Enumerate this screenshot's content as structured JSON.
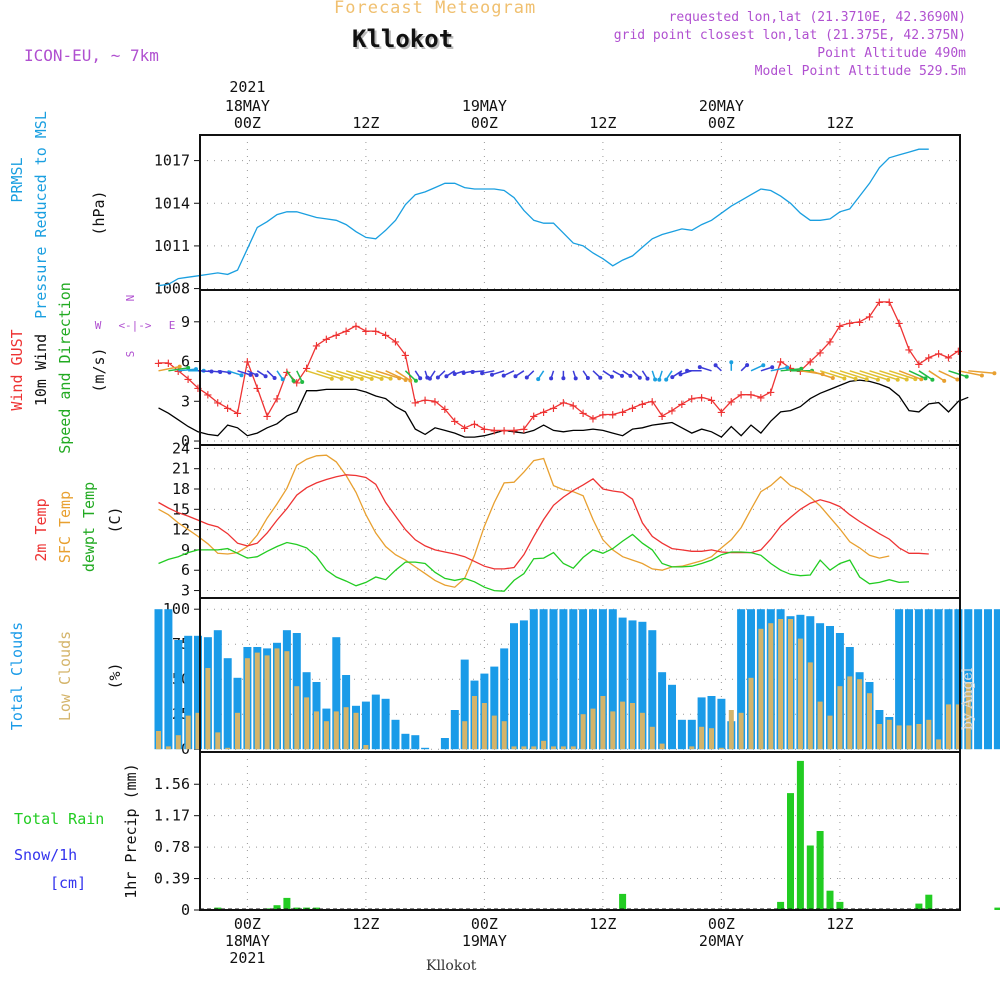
{
  "header": {
    "title": "Forecast Meteogram",
    "location": "Kllokot",
    "model": "ICON-EU, ~ 7km",
    "requested": "requested lon,lat (21.3710E, 42.3690N)",
    "grid_point": "grid point closest lon,lat (21.375E, 42.375N)",
    "point_alt": "Point Altitude 490m",
    "model_alt": "Model Point Altitude 529.5m",
    "footer": "Kllokot",
    "watermark": "by Angel"
  },
  "colors": {
    "pressure": "#1a9fe0",
    "gust": "#ee3333",
    "wind": "#000000",
    "temp": "#ee3333",
    "sfc": "#e8a030",
    "dewpt": "#22cc22",
    "total_cloud": "#1a9be8",
    "low_cloud": "#d4b46a",
    "rain": "#22cc22",
    "snow": "#3333ee",
    "purple": "#b050d0",
    "title": "#f0c070"
  },
  "time_axis": {
    "top_year": "2021",
    "top_ticks": [
      {
        "t": 9,
        "lines": [
          "18MAY",
          "00Z"
        ]
      },
      {
        "t": 21,
        "lines": [
          "12Z"
        ]
      },
      {
        "t": 33,
        "lines": [
          "19MAY",
          "00Z"
        ]
      },
      {
        "t": 45,
        "lines": [
          "12Z"
        ]
      },
      {
        "t": 57,
        "lines": [
          "20MAY",
          "00Z"
        ]
      },
      {
        "t": 69,
        "lines": [
          "12Z"
        ]
      }
    ],
    "bottom_ticks": [
      {
        "t": 9,
        "lines": [
          "00Z",
          "18MAY",
          "2021"
        ]
      },
      {
        "t": 21,
        "lines": [
          "12Z"
        ]
      },
      {
        "t": 33,
        "lines": [
          "00Z",
          "19MAY"
        ]
      },
      {
        "t": 45,
        "lines": [
          "12Z"
        ]
      },
      {
        "t": 57,
        "lines": [
          "00Z",
          "20MAY"
        ]
      },
      {
        "t": 69,
        "lines": [
          "12Z"
        ]
      }
    ]
  },
  "chart_data": [
    {
      "type": "line",
      "title": "PRMSL Pressure Reduced to MSL",
      "ylabel": "(hPa)",
      "yticks": [
        1008,
        1011,
        1014,
        1017
      ],
      "ylim": [
        1007.9,
        1018.8
      ],
      "series": [
        {
          "name": "Pressure",
          "values": [
            1008.2,
            1008.3,
            1008.7,
            1008.8,
            1008.9,
            1009.0,
            1009.1,
            1009.0,
            1009.3,
            1010.8,
            1012.3,
            1012.7,
            1013.2,
            1013.4,
            1013.4,
            1013.2,
            1013.0,
            1012.9,
            1012.8,
            1012.5,
            1012.0,
            1011.6,
            1011.5,
            1012.1,
            1012.8,
            1013.9,
            1014.6,
            1014.8,
            1015.1,
            1015.4,
            1015.4,
            1015.1,
            1015.0,
            1015.0,
            1015.0,
            1014.9,
            1014.4,
            1013.5,
            1012.8,
            1012.6,
            1012.6,
            1011.9,
            1011.2,
            1011.0,
            1010.5,
            1010.1,
            1009.6,
            1010.0,
            1010.3,
            1010.9,
            1011.5,
            1011.8,
            1012.0,
            1012.2,
            1012.1,
            1012.5,
            1012.8,
            1013.3,
            1013.8,
            1014.2,
            1014.6,
            1015.0,
            1014.9,
            1014.5,
            1014.0,
            1013.3,
            1012.8,
            1012.8,
            1012.9,
            1013.4,
            1013.6,
            1014.5,
            1015.4,
            1016.5,
            1017.2,
            1017.4,
            1017.6,
            1017.8,
            1017.8
          ]
        }
      ]
    },
    {
      "type": "line",
      "title": "Wind GUST / 10m Wind Speed and Direction",
      "ylabel": "(m/s)",
      "yticks": [
        0,
        3,
        6,
        9
      ],
      "ylim": [
        -0.3,
        11.4
      ],
      "compass": [
        "N",
        "E",
        "S",
        "W"
      ],
      "series": [
        {
          "name": "Wind GUST",
          "values": [
            5.9,
            5.9,
            5.3,
            4.7,
            4.0,
            3.5,
            2.9,
            2.5,
            2.1,
            6.0,
            4.0,
            1.9,
            3.2,
            5.2,
            4.4,
            5.5,
            7.2,
            7.7,
            8.0,
            8.3,
            8.7,
            8.3,
            8.3,
            8.0,
            7.5,
            6.5,
            2.9,
            3.1,
            3.0,
            2.4,
            1.5,
            1.0,
            1.3,
            0.9,
            0.8,
            0.8,
            0.8,
            0.9,
            1.9,
            2.2,
            2.5,
            2.9,
            2.7,
            2.1,
            1.7,
            2.0,
            2.0,
            2.2,
            2.5,
            2.8,
            3.0,
            1.9,
            2.3,
            2.8,
            3.2,
            3.3,
            3.1,
            2.2,
            3.0,
            3.5,
            3.5,
            3.3,
            3.7,
            6.0,
            5.5,
            5.3,
            6.0,
            6.7,
            7.5,
            8.7,
            8.9,
            9.0,
            9.4,
            10.5,
            10.5,
            8.9,
            6.9,
            5.8,
            6.3,
            6.6,
            6.3,
            6.8
          ]
        },
        {
          "name": "10m Wind",
          "values": [
            2.5,
            2.1,
            1.6,
            1.1,
            0.7,
            0.5,
            0.4,
            1.2,
            1.0,
            0.4,
            0.6,
            1.0,
            1.3,
            1.9,
            2.2,
            3.8,
            3.8,
            3.9,
            3.9,
            3.9,
            3.9,
            3.7,
            3.4,
            3.2,
            2.6,
            2.2,
            0.9,
            0.5,
            1.0,
            0.8,
            0.6,
            0.3,
            0.3,
            0.4,
            0.6,
            0.8,
            0.7,
            0.6,
            0.8,
            1.2,
            0.8,
            0.7,
            0.8,
            0.8,
            0.9,
            0.8,
            0.6,
            0.4,
            0.9,
            1.0,
            1.2,
            1.3,
            1.4,
            1.0,
            0.6,
            0.9,
            0.7,
            0.3,
            1.1,
            0.4,
            1.2,
            0.6,
            1.5,
            2.2,
            2.3,
            2.6,
            3.2,
            3.6,
            3.9,
            4.2,
            4.5,
            4.6,
            4.5,
            4.3,
            4.0,
            3.4,
            2.3,
            2.2,
            2.8,
            2.9,
            2.2,
            3.0,
            3.3
          ]
        }
      ],
      "wind_direction_deg": [
        250,
        255,
        260,
        270,
        275,
        280,
        285,
        300,
        300,
        310,
        320,
        330,
        340,
        340,
        345,
        300,
        300,
        300,
        300,
        300,
        300,
        300,
        300,
        310,
        320,
        330,
        340,
        350,
        20,
        30,
        40,
        60,
        70,
        80,
        70,
        60,
        50,
        40,
        30,
        20,
        10,
        0,
        350,
        340,
        330,
        320,
        315,
        320,
        330,
        340,
        350,
        10,
        20,
        40,
        60,
        90,
        120,
        150,
        180,
        210,
        230,
        240,
        250,
        260,
        270,
        285,
        300,
        300,
        300,
        300,
        300,
        300,
        300,
        300,
        300,
        305,
        310,
        320,
        320,
        310,
        300,
        290,
        280
      ]
    },
    {
      "type": "line",
      "title": "2m Temp / SFC Temp / dewpt Temp",
      "ylabel": "(C)",
      "yticks": [
        3,
        6,
        9,
        12,
        15,
        18,
        21,
        24
      ],
      "ylim": [
        1.9,
        24.5
      ],
      "series": [
        {
          "name": "2m Temp",
          "values": [
            16.0,
            15.2,
            14.5,
            14.0,
            13.4,
            12.8,
            12.4,
            11.4,
            10.0,
            9.6,
            10.0,
            11.5,
            13.4,
            15.1,
            17.1,
            18.2,
            18.9,
            19.4,
            19.8,
            20.1,
            20.0,
            19.7,
            18.7,
            16.0,
            14.0,
            12.0,
            10.5,
            9.6,
            9.0,
            8.7,
            8.4,
            8.0,
            7.3,
            6.6,
            6.2,
            6.2,
            6.4,
            8.3,
            11.0,
            13.5,
            15.6,
            16.8,
            17.8,
            18.6,
            19.5,
            18.0,
            17.7,
            17.5,
            16.5,
            13.0,
            11.0,
            10.0,
            9.2,
            9.0,
            8.8,
            8.8,
            9.0,
            8.7,
            8.6,
            8.6,
            8.6,
            9.0,
            10.6,
            12.5,
            13.8,
            15.0,
            15.9,
            16.4,
            16.0,
            15.4,
            14.2,
            13.2,
            12.3,
            11.4,
            10.6,
            9.3,
            8.5,
            8.5,
            8.4
          ]
        },
        {
          "name": "SFC Temp",
          "values": [
            15.0,
            14.2,
            13.0,
            12.0,
            11.0,
            9.9,
            8.5,
            8.4,
            8.6,
            9.5,
            11.2,
            13.7,
            15.8,
            18.1,
            21.5,
            22.4,
            22.9,
            23.0,
            22.0,
            20.0,
            17.5,
            14.2,
            11.5,
            9.5,
            8.3,
            7.5,
            6.5,
            5.5,
            4.5,
            3.8,
            3.5,
            4.8,
            8.2,
            12.5,
            16.0,
            18.9,
            19.0,
            20.5,
            22.2,
            22.5,
            18.5,
            17.9,
            17.6,
            17.0,
            13.5,
            10.5,
            9.0,
            8.0,
            7.5,
            7.0,
            6.2,
            6.0,
            6.5,
            6.6,
            7.0,
            7.4,
            8.0,
            9.3,
            10.5,
            12.3,
            15.0,
            17.6,
            18.5,
            19.8,
            18.5,
            17.9,
            16.8,
            15.5,
            13.8,
            12.1,
            10.2,
            9.3,
            8.2,
            7.8,
            8.1
          ]
        },
        {
          "name": "dewpt Temp",
          "values": [
            7.0,
            7.6,
            8.0,
            8.6,
            9.0,
            9.0,
            9.0,
            9.2,
            8.5,
            7.8,
            8.0,
            8.8,
            9.5,
            10.1,
            9.8,
            9.3,
            8.0,
            6.0,
            5.0,
            4.4,
            3.7,
            4.2,
            5.0,
            4.6,
            6.0,
            7.2,
            7.2,
            7.0,
            5.7,
            4.8,
            4.5,
            4.8,
            4.3,
            3.5,
            3.0,
            2.9,
            4.5,
            5.5,
            7.7,
            7.8,
            8.6,
            7.0,
            6.3,
            7.9,
            9.0,
            8.5,
            9.2,
            10.3,
            11.3,
            10.0,
            9.0,
            7.0,
            6.5,
            6.5,
            6.6,
            7.0,
            7.5,
            8.3,
            8.7,
            8.7,
            8.6,
            8.2,
            7.0,
            6.0,
            5.4,
            5.2,
            5.3,
            7.5,
            6.0,
            7.0,
            7.5,
            5.0,
            4.0,
            4.2,
            4.6,
            4.2,
            4.3
          ]
        }
      ]
    },
    {
      "type": "bar",
      "title": "Total Clouds / Low Clouds",
      "ylabel": "(%)",
      "yticks": [
        0,
        25,
        50,
        75,
        100
      ],
      "ylim": [
        -2,
        108
      ],
      "series": [
        {
          "name": "Total Clouds",
          "values": [
            100,
            100,
            78,
            81,
            81,
            80,
            85,
            65,
            51,
            73,
            73,
            72,
            76,
            85,
            83,
            55,
            48,
            29,
            80,
            53,
            31,
            34,
            39,
            36,
            21,
            11,
            10,
            1,
            0,
            8,
            28,
            64,
            49,
            54,
            59,
            72,
            90,
            92,
            100,
            100,
            100,
            100,
            100,
            100,
            100,
            100,
            100,
            94,
            92,
            91,
            85,
            55,
            46,
            21,
            21,
            37,
            38,
            36,
            20,
            100,
            100,
            100,
            100,
            100,
            95,
            96,
            95,
            90,
            88,
            83,
            73,
            55,
            48,
            28,
            23,
            100,
            100,
            100,
            100,
            100,
            100,
            100,
            100,
            100,
            100,
            100,
            100
          ]
        },
        {
          "name": "Low Clouds",
          "values": [
            13,
            2,
            10,
            24,
            26,
            58,
            12,
            1,
            26,
            65,
            69,
            67,
            72,
            70,
            45,
            37,
            27,
            20,
            27,
            30,
            26,
            3,
            0,
            0,
            0,
            0,
            0,
            0,
            0,
            0,
            0,
            20,
            38,
            33,
            24,
            20,
            2,
            2,
            2,
            6,
            2,
            2,
            2,
            25,
            29,
            38,
            27,
            34,
            33,
            26,
            16,
            4,
            0,
            0,
            2,
            16,
            15,
            1,
            28,
            26,
            51,
            86,
            90,
            93,
            93,
            79,
            62,
            34,
            24,
            45,
            52,
            50,
            40,
            18,
            21,
            17,
            17,
            18,
            21,
            7,
            32,
            32,
            48
          ]
        }
      ]
    },
    {
      "type": "bar",
      "title": "Total Rain Snow/1h [cm]",
      "ylabel": "1hr Precip (mm)",
      "yticks": [
        0,
        0.39,
        0.78,
        1.17,
        1.56
      ],
      "ylim": [
        0,
        1.96
      ],
      "series": [
        {
          "name": "Total Rain",
          "values": [
            0,
            0,
            0,
            0,
            0,
            0,
            0.03,
            0,
            0,
            0,
            0,
            0.02,
            0.06,
            0.15,
            0.03,
            0.03,
            0.03,
            0,
            0,
            0,
            0,
            0,
            0,
            0,
            0,
            0,
            0,
            0,
            0,
            0,
            0,
            0,
            0,
            0,
            0,
            0,
            0,
            0,
            0,
            0,
            0,
            0,
            0,
            0,
            0,
            0,
            0,
            0.2,
            0,
            0,
            0,
            0,
            0,
            0,
            0,
            0,
            0,
            0,
            0,
            0,
            0,
            0,
            0,
            0.1,
            1.45,
            1.85,
            0.8,
            0.98,
            0.24,
            0.1,
            0,
            0,
            0,
            0,
            0,
            0,
            0,
            0.08,
            0.19,
            0,
            0,
            0,
            0,
            0,
            0,
            0.03,
            0.03,
            0.1
          ]
        },
        {
          "name": "Snow/1h",
          "values": []
        }
      ]
    }
  ]
}
